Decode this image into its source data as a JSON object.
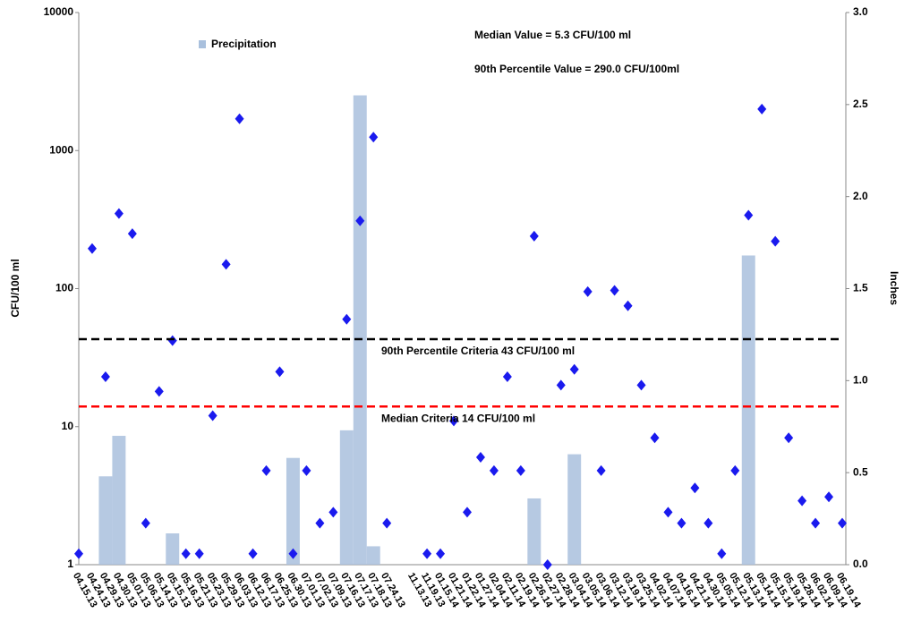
{
  "chart_data": {
    "type": "combo",
    "categories": [
      "04.15.13",
      "04.24.13",
      "04.29.13",
      "04.30.13",
      "05.01.13",
      "05.06.13",
      "05.14.13",
      "05.15.13",
      "05.16.13",
      "05.21.13",
      "05.23.13",
      "05.29.13",
      "06.03.13",
      "06.12.13",
      "06.17.13",
      "06.25.13",
      "06.30.13",
      "07.01.13",
      "07.02.13",
      "07.09.13",
      "07.16.13",
      "07.17.13",
      "07.18.13",
      "07.24.13",
      null,
      "11.13.13",
      "11.19.13",
      "01.15.14",
      "01.21.14",
      "01.22.14",
      "01.27.14",
      "02.04.14",
      "02.11.14",
      "02.19.14",
      "02.26.14",
      "02.27.14",
      "02.28.14",
      "03.04.14",
      "03.05.14",
      "03.06.14",
      "03.12.14",
      "03.19.14",
      "03.25.14",
      "04.02.14",
      "04.07.14",
      "04.16.14",
      "04.21.14",
      "04.30.14",
      "05.05.14",
      "05.12.14",
      "05.13.14",
      "05.14.14",
      "05.15.14",
      "05.19.14",
      "05.28.14",
      "06.02.14",
      "06.09.14",
      "06.19.14"
    ],
    "series": [
      {
        "name": "Precipitation",
        "type": "bar",
        "axis": "y2",
        "color": "#a9c0dd",
        "values": [
          0,
          0,
          0.48,
          0.7,
          0,
          0,
          0,
          0.17,
          0,
          0,
          0,
          0,
          0,
          0,
          0,
          0,
          0.58,
          0,
          0,
          0,
          0.73,
          2.55,
          0.1,
          0,
          null,
          0,
          0,
          0,
          0,
          0,
          0,
          0,
          0,
          0,
          0.36,
          0,
          0,
          0.6,
          0,
          0,
          0,
          0,
          0,
          0,
          0,
          0,
          0,
          0,
          0,
          0,
          1.68,
          0,
          0,
          0,
          0,
          0,
          0,
          0
        ]
      },
      {
        "type": "scatter",
        "color": "#1a1aee",
        "values": [
          1.2,
          195,
          23,
          350,
          250,
          2,
          18,
          42,
          1.2,
          1.2,
          12,
          150,
          1700,
          1.2,
          4.8,
          25,
          1.2,
          4.8,
          2,
          2.4,
          60,
          310,
          1250,
          2,
          null,
          null,
          1.2,
          1.2,
          11,
          2.4,
          6,
          4.8,
          23,
          4.8,
          240,
          1,
          20,
          26,
          95,
          4.8,
          97,
          75,
          20,
          8.3,
          2.4,
          2,
          3.6,
          2,
          1.2,
          4.8,
          340,
          2000,
          220,
          8.3,
          2.9,
          2,
          3.1,
          2
        ]
      }
    ],
    "ylabel": "CFU/100 ml",
    "y2label": "Inches",
    "log_y": true,
    "ylim": [
      1,
      10000
    ],
    "yticks": [
      1,
      10,
      100,
      1000,
      10000
    ],
    "y2lim": [
      0,
      3
    ],
    "y2ticks": [
      {
        "value": 0,
        "label": "0.0"
      },
      {
        "value": 0.5,
        "label": "0.5"
      },
      {
        "value": 1,
        "label": "1.0"
      },
      {
        "value": 1.5,
        "label": "1.5"
      },
      {
        "value": 2,
        "label": "2.0"
      },
      {
        "value": 2.5,
        "label": "2.5"
      },
      {
        "value": 3,
        "label": "3.0"
      }
    ],
    "reference_lines": [
      {
        "value": 43,
        "label": "90th Percentile Criteria 43 CFU/100 ml",
        "color": "#000000"
      },
      {
        "value": 14,
        "label": "Median Criteria 14 CFU/100 ml",
        "color": "#ff0000"
      }
    ],
    "annotations": [
      {
        "text": "Median Value = 5.3 CFU/100 ml",
        "color": "#ff0000"
      },
      {
        "text": "90th Percentile Value = 290.0 CFU/100ml",
        "color": "#000000"
      }
    ]
  }
}
